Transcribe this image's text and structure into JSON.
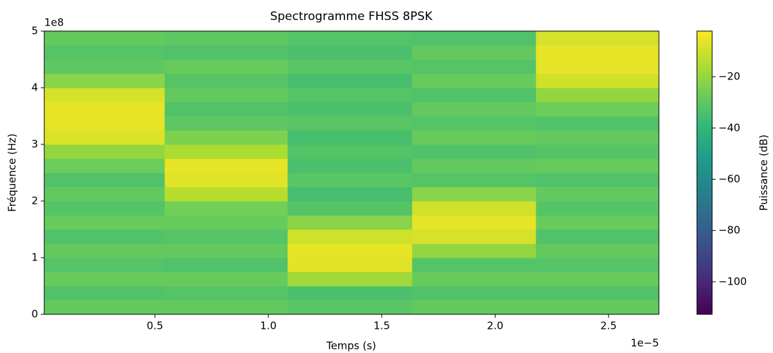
{
  "chart_data": {
    "type": "spectrogram",
    "title": "Spectrogramme FHSS 8PSK",
    "x_label": "Temps (s)",
    "y_label": "Fréquence (Hz)",
    "x_offset_label": "1e−5",
    "y_offset_label": "1e8",
    "colorbar_label": "Puissance (dB)",
    "colormap": "viridis",
    "x_edges": [
      0.012,
      0.543,
      1.085,
      1.634,
      2.18,
      2.722
    ],
    "y_edges": [
      0,
      0.25,
      0.5,
      0.75,
      1,
      1.25,
      1.5,
      1.75,
      2,
      2.25,
      2.5,
      2.75,
      3,
      3.25,
      3.5,
      3.75,
      4,
      4.25,
      4.5,
      4.75,
      5
    ],
    "values": [
      [
        -29,
        -33,
        -28,
        -32,
        -29,
        -33,
        -28,
        -32,
        -29,
        -33,
        -27,
        -20,
        -8,
        -6,
        -6,
        -9,
        -22,
        -30,
        -32,
        -29
      ],
      [
        -29,
        -32,
        -28,
        -33,
        -29,
        -32,
        -28,
        -26,
        -14,
        -7,
        -6,
        -16,
        -24,
        -30,
        -33,
        -29,
        -32,
        -28,
        -33,
        -30
      ],
      [
        -31,
        -34,
        -18,
        -7,
        -6,
        -10,
        -22,
        -32,
        -35,
        -31,
        -34,
        -32,
        -35,
        -31,
        -34,
        -32,
        -35,
        -31,
        -34,
        -32
      ],
      [
        -29,
        -33,
        -28,
        -32,
        -20,
        -9,
        -6,
        -10,
        -22,
        -32,
        -29,
        -33,
        -28,
        -32,
        -29,
        -33,
        -28,
        -32,
        -29,
        -33
      ],
      [
        -29,
        -33,
        -28,
        -32,
        -29,
        -33,
        -28,
        -32,
        -29,
        -33,
        -28,
        -32,
        -29,
        -33,
        -27,
        -20,
        -10,
        -6,
        -6,
        -9
      ]
    ],
    "xlim": [
      0.012,
      2.722
    ],
    "ylim": [
      0,
      5
    ],
    "clim": [
      -112.7,
      -2.2
    ],
    "xticks": [
      0.5,
      {
        "value": 1,
        "label": "1.0"
      },
      1.5,
      {
        "value": 2,
        "label": "2.0"
      },
      2.5
    ],
    "yticks": [
      0,
      1,
      2,
      3,
      4,
      5
    ],
    "cticks": [
      {
        "value": -20,
        "label": "−20"
      },
      {
        "value": -40,
        "label": "−40"
      },
      {
        "value": -60,
        "label": "−60"
      },
      {
        "value": -80,
        "label": "−80"
      },
      {
        "value": -100,
        "label": "−100"
      }
    ]
  }
}
